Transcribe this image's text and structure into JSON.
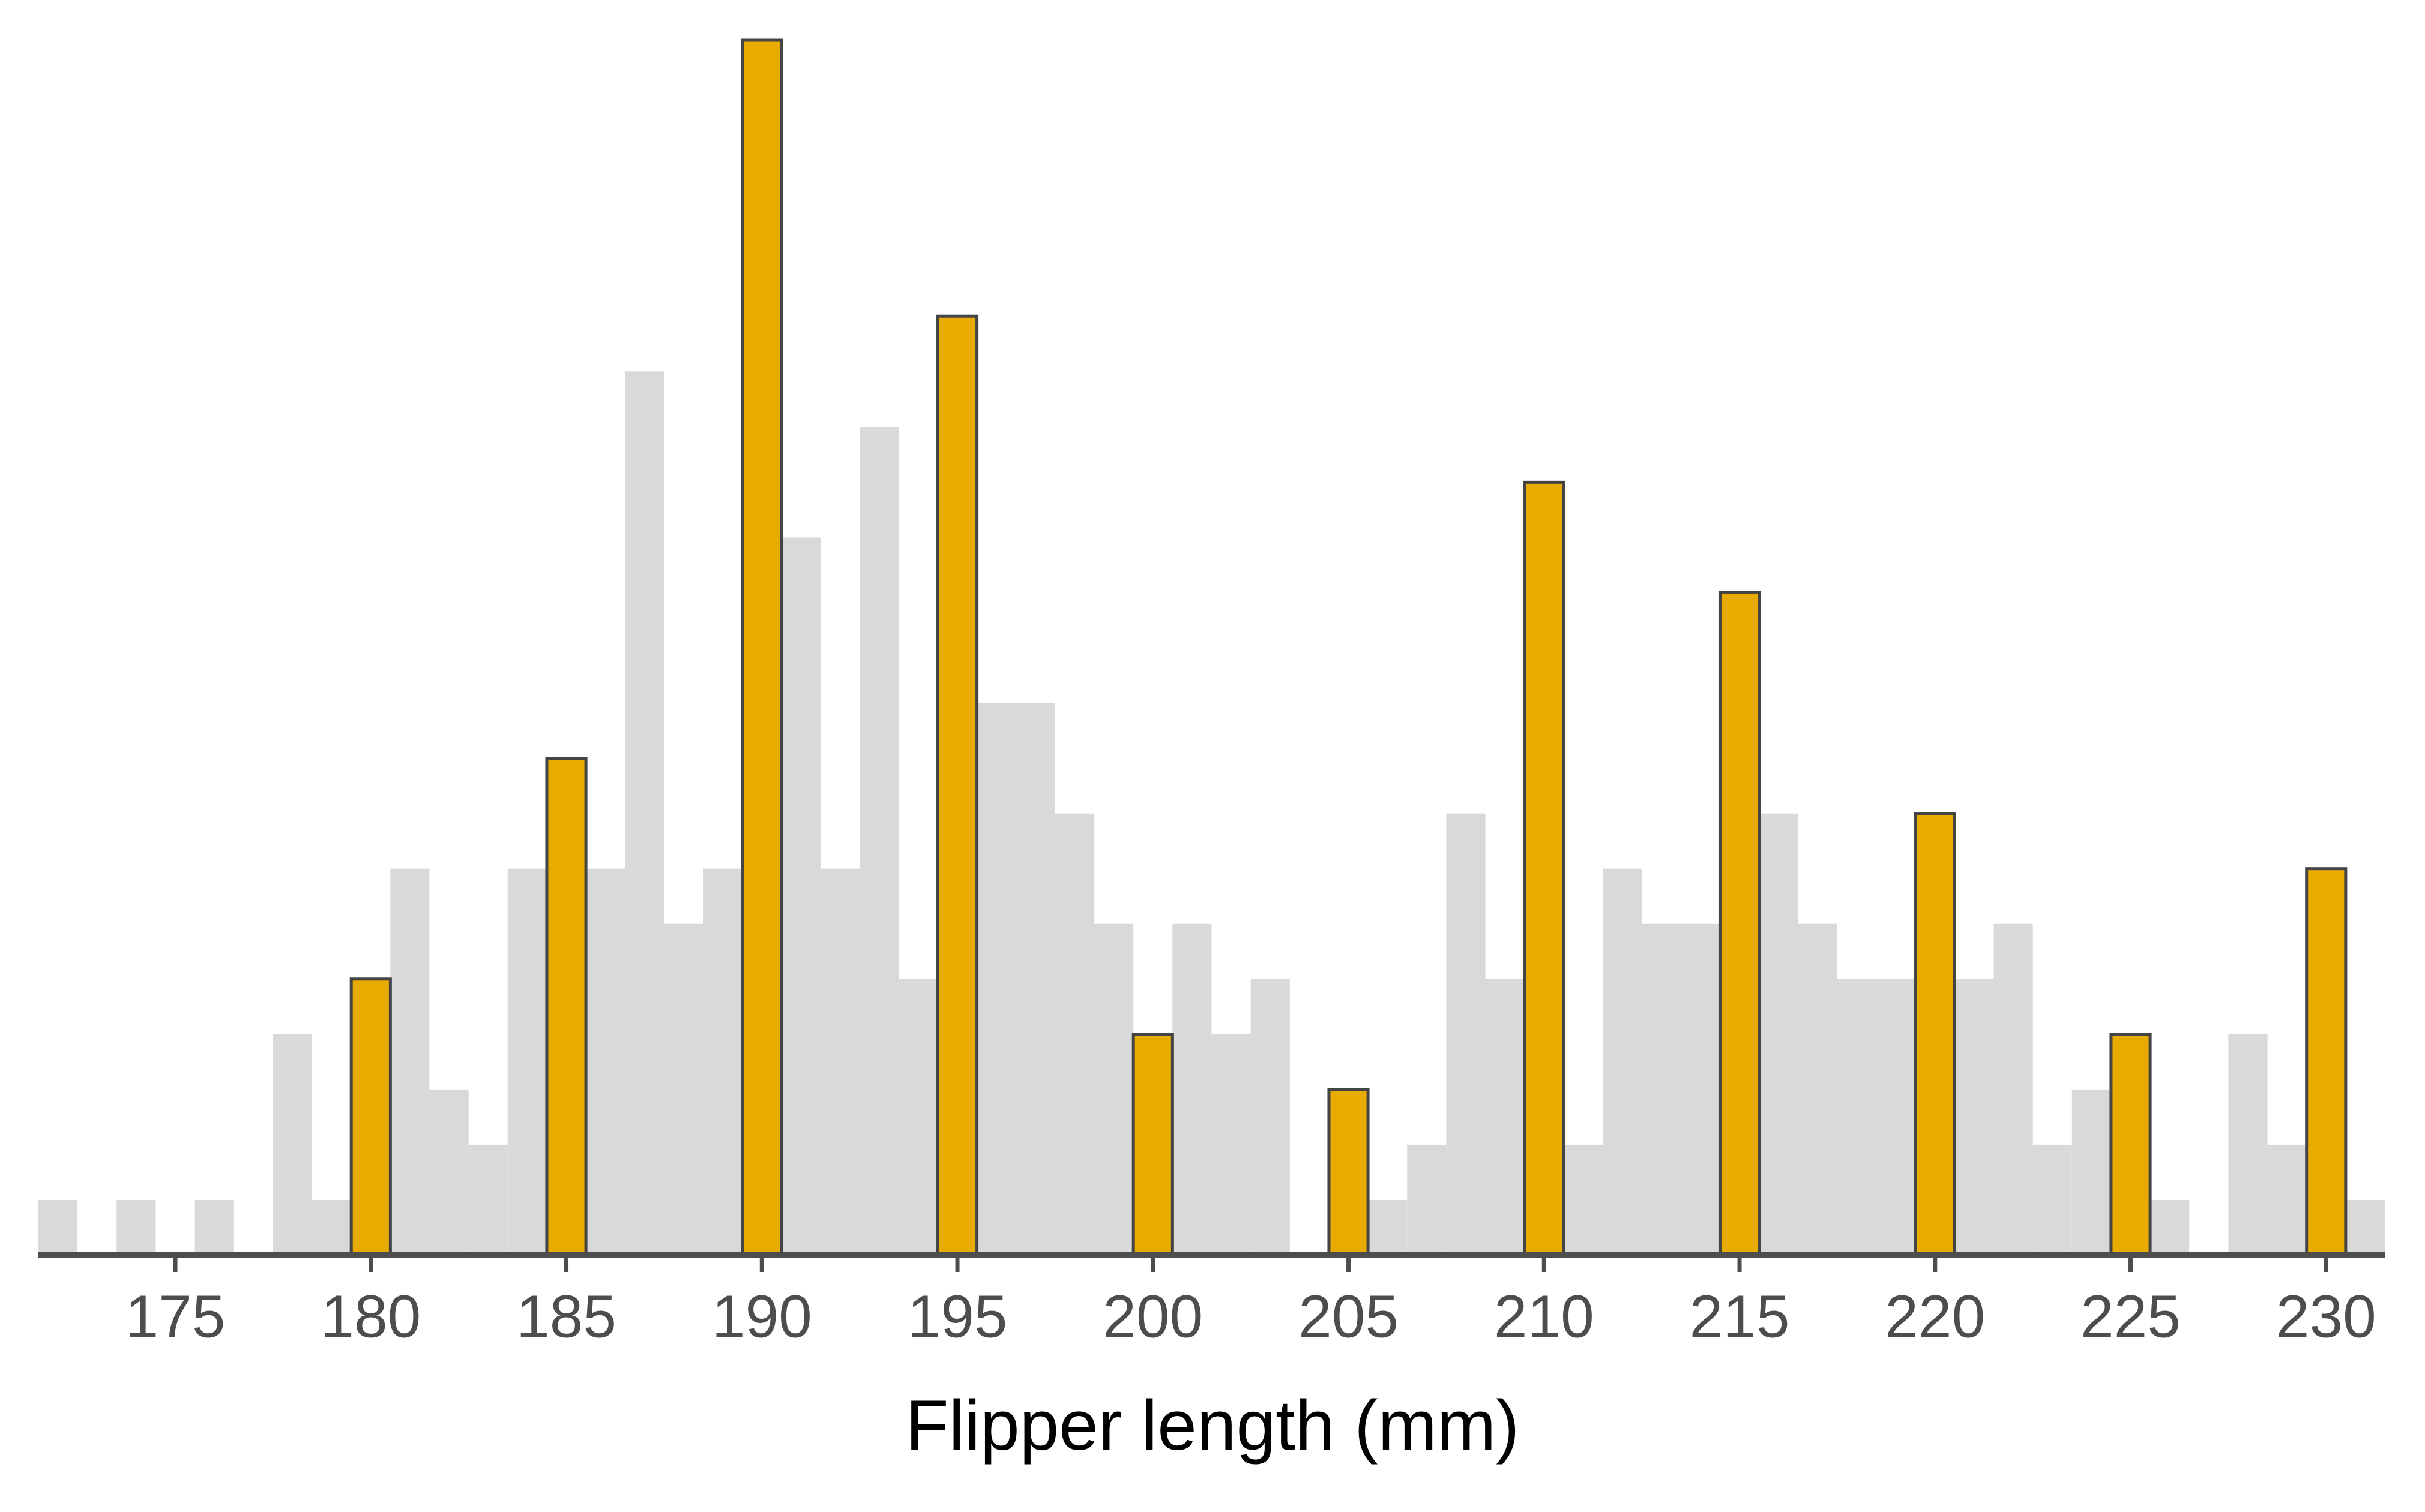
{
  "chart_data": {
    "type": "histogram",
    "x_label": "Flipper length (mm)",
    "bins": [
      171.5,
      172.5,
      173.5,
      174.5,
      175.5,
      176.5,
      177.5,
      178.5,
      179.5,
      180.5,
      181.5,
      182.5,
      183.5,
      184.5,
      185.5,
      186.5,
      187.5,
      188.5,
      189.5,
      190.5,
      191.5,
      192.5,
      193.5,
      194.5,
      195.5,
      196.5,
      197.5,
      198.5,
      199.5,
      200.5,
      201.5,
      202.5,
      203.5,
      204.5,
      205.5,
      206.5,
      207.5,
      208.5,
      209.5,
      210.5,
      211.5,
      212.5,
      213.5,
      214.5,
      215.5,
      216.5,
      217.5,
      218.5,
      219.5,
      220.5,
      221.5,
      222.5,
      223.5,
      224.5,
      225.5,
      226.5,
      227.5,
      228.5,
      229.5,
      230.5,
      231.5
    ],
    "series": [
      {
        "color": "#d9d9d9",
        "edgecolor": null,
        "values": [
          1,
          0,
          1,
          0,
          1,
          0,
          4,
          1,
          null,
          7,
          3,
          2,
          7,
          null,
          7,
          16,
          6,
          7,
          null,
          13,
          7,
          15,
          5,
          null,
          10,
          10,
          8,
          6,
          null,
          6,
          4,
          5,
          0,
          null,
          1,
          2,
          8,
          5,
          null,
          2,
          7,
          6,
          6,
          null,
          8,
          6,
          5,
          5,
          null,
          5,
          6,
          2,
          3,
          null,
          1,
          0,
          4,
          2,
          null,
          1
        ]
      },
      {
        "color": "#e8ab00",
        "edgecolor": "#444444",
        "values": [
          null,
          null,
          null,
          null,
          null,
          null,
          null,
          null,
          5,
          null,
          null,
          null,
          null,
          9,
          null,
          null,
          null,
          null,
          22,
          null,
          null,
          null,
          null,
          17,
          null,
          null,
          null,
          null,
          4,
          null,
          null,
          null,
          null,
          3,
          null,
          null,
          null,
          null,
          14,
          null,
          null,
          null,
          null,
          12,
          null,
          null,
          null,
          null,
          8,
          null,
          null,
          null,
          null,
          4,
          null,
          null,
          null,
          null,
          7,
          null
        ]
      }
    ],
    "xlim": [
      171.5,
      231.5
    ],
    "ylim": [
      0,
      22
    ],
    "xticks": [
      175,
      180,
      185,
      190,
      195,
      200,
      205,
      210,
      215,
      220,
      225,
      230
    ]
  }
}
